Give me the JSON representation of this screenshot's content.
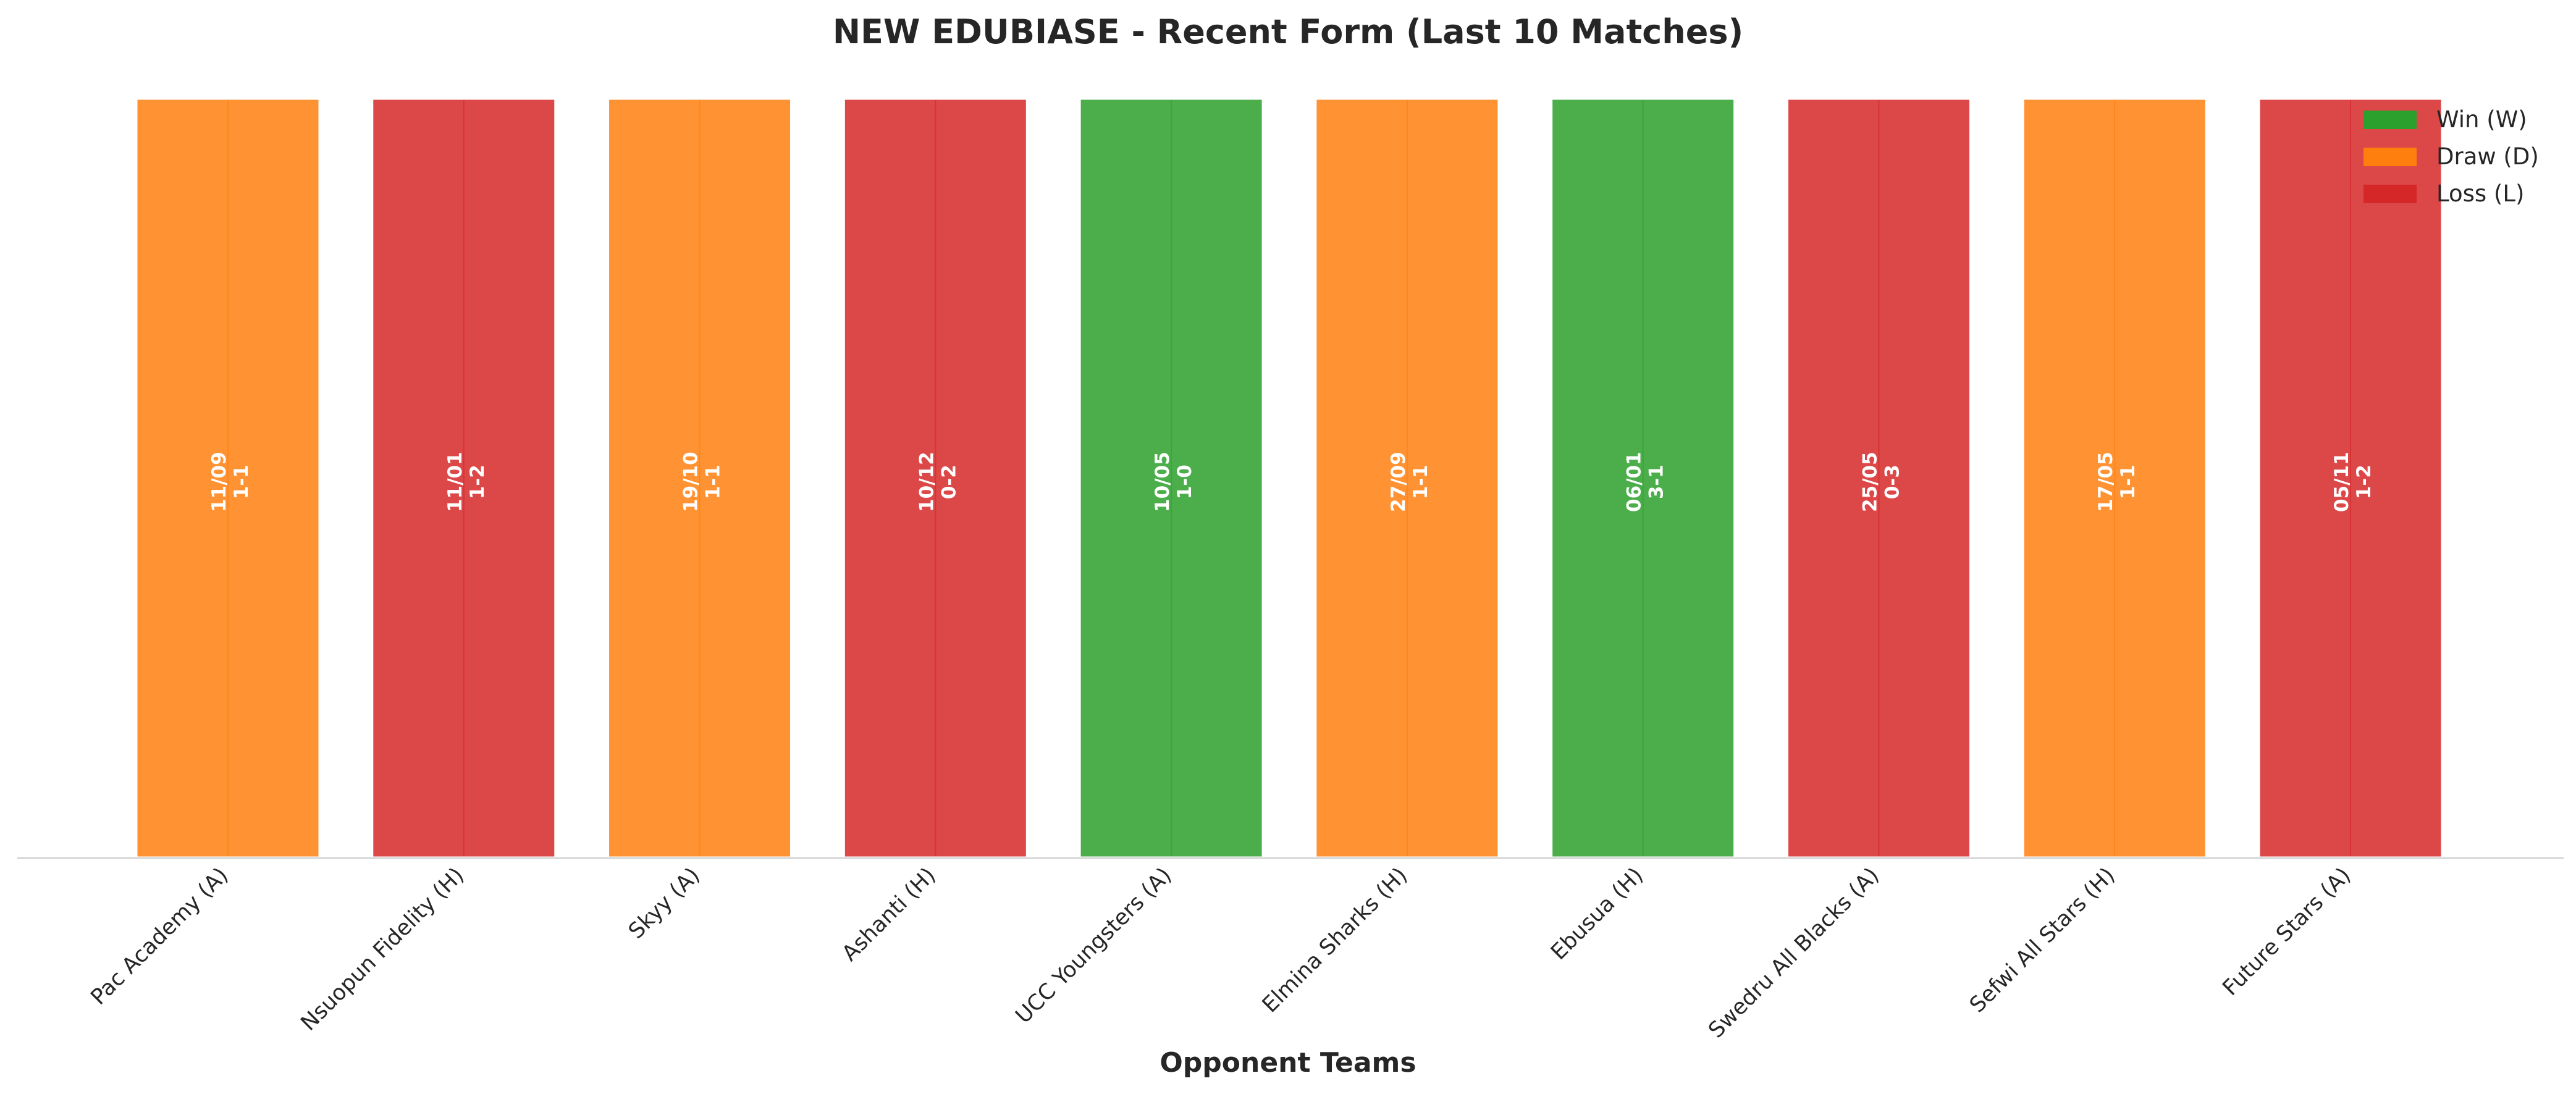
{
  "chart_data": {
    "type": "bar",
    "title": "NEW EDUBIASE - Recent Form (Last 10 Matches)",
    "xlabel": "Opponent Teams",
    "ylabel": "",
    "ylim": [
      0,
      1
    ],
    "grid": false,
    "legend": {
      "placement": "top-right",
      "entries": [
        {
          "key": "W",
          "label": "Win (W)",
          "color": "#2ca02c"
        },
        {
          "key": "D",
          "label": "Draw (D)",
          "color": "#ff7f0e"
        },
        {
          "key": "L",
          "label": "Loss (L)",
          "color": "#d62728"
        }
      ]
    },
    "categories": [
      "Pac Academy (A)",
      "Nsuopun Fidelity (H)",
      "Skyy (A)",
      "Ashanti (H)",
      "UCC Youngsters (A)",
      "Elmina Sharks (H)",
      "Ebusua (H)",
      "Swedru All Blacks (A)",
      "Sefwi All Stars (H)",
      "Future Stars (A)"
    ],
    "values": [
      1,
      1,
      1,
      1,
      1,
      1,
      1,
      1,
      1,
      1
    ],
    "results": [
      "D",
      "L",
      "D",
      "L",
      "W",
      "D",
      "W",
      "L",
      "D",
      "L"
    ],
    "dates": [
      "11/09",
      "11/01",
      "19/10",
      "10/12",
      "10/05",
      "27/09",
      "06/01",
      "25/05",
      "17/05",
      "05/11"
    ],
    "scores": [
      "1-1",
      "1-2",
      "1-1",
      "0-2",
      "1-0",
      "1-1",
      "3-1",
      "0-3",
      "1-1",
      "1-2"
    ]
  }
}
